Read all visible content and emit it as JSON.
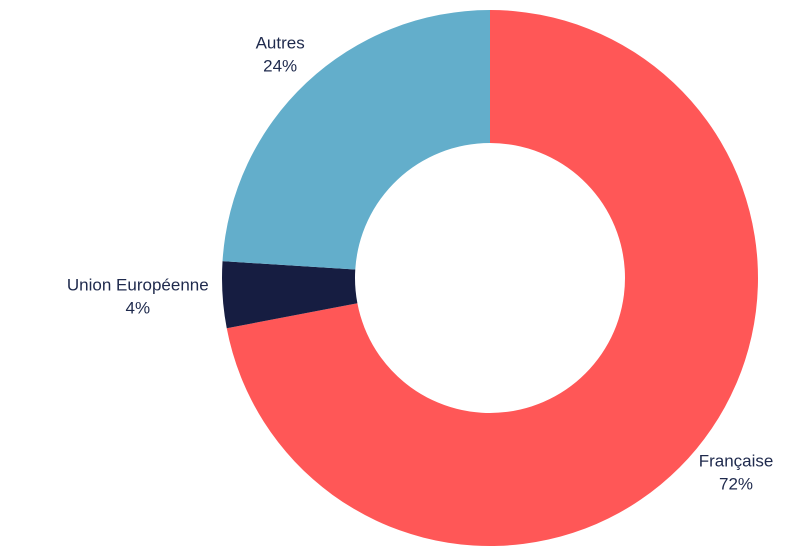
{
  "chart_data": {
    "type": "donut",
    "categories": [
      "Française",
      "Union Européenne",
      "Autres"
    ],
    "values": [
      72,
      4,
      24
    ],
    "value_labels": [
      "72%",
      "4%",
      "24%"
    ],
    "colors": [
      "#ff5757",
      "#161d41",
      "#63aecb"
    ]
  }
}
